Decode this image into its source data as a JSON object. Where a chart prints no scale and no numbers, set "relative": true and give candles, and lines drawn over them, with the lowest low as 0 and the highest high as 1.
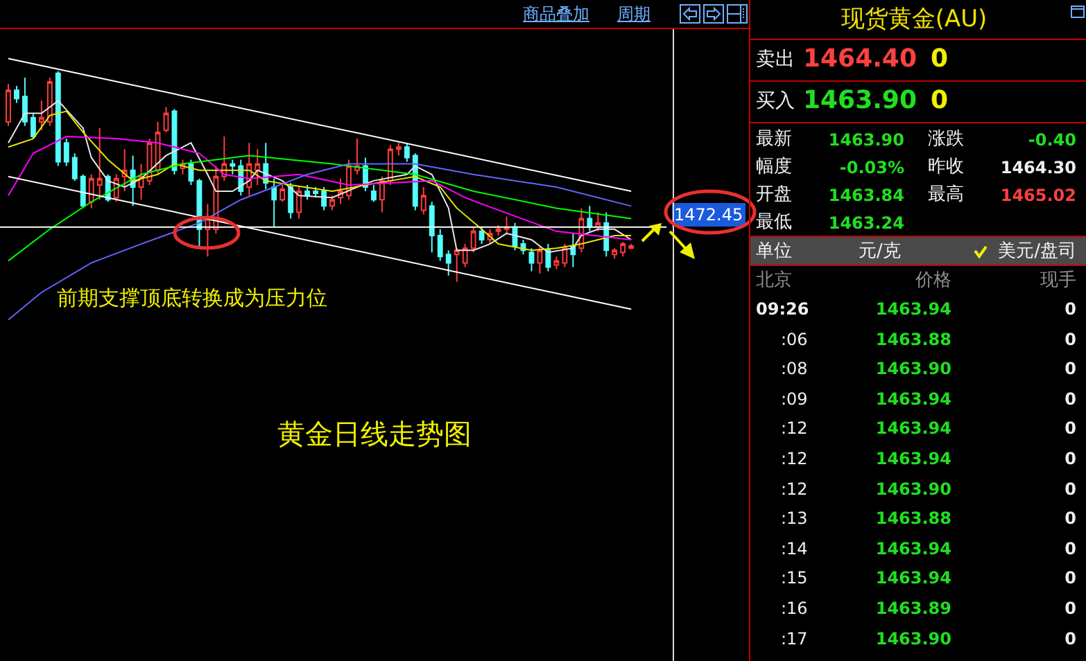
{
  "chart_data": [
    {
      "type": "candlestick",
      "title": "黄金日线走势图",
      "relative": true,
      "categories": [
        null,
        null,
        null,
        null,
        null,
        null,
        null,
        null,
        null,
        null,
        null,
        null,
        null,
        null,
        null,
        null,
        null,
        null,
        null,
        null,
        null,
        null,
        null,
        null,
        null,
        null,
        null,
        null,
        null,
        null,
        null,
        null,
        null,
        null,
        null,
        null,
        null,
        null,
        null,
        null,
        null,
        null,
        null,
        null,
        null,
        null,
        null,
        null,
        null,
        null,
        null,
        null,
        null,
        null,
        null,
        null,
        null,
        null,
        null,
        null,
        null,
        null,
        null,
        null,
        null,
        null,
        null,
        null,
        null,
        null,
        null,
        null,
        null,
        null,
        null,
        null
      ],
      "ohlc": [
        [
          0.76,
          0.94,
          0.74,
          0.91
        ],
        [
          0.91,
          0.93,
          0.85,
          0.87
        ],
        [
          0.88,
          0.97,
          0.74,
          0.76
        ],
        [
          0.78,
          0.8,
          0.68,
          0.69
        ],
        [
          0.76,
          0.86,
          0.72,
          0.78
        ],
        [
          0.76,
          0.97,
          0.74,
          0.95
        ],
        [
          0.99,
          1,
          0.55,
          0.57
        ],
        [
          0.66,
          0.68,
          0.55,
          0.57
        ],
        [
          0.59,
          0.61,
          0.48,
          0.49
        ],
        [
          0.5,
          0.51,
          0.35,
          0.36
        ],
        [
          0.38,
          0.51,
          0.35,
          0.49
        ],
        [
          0.46,
          0.73,
          0.39,
          0.49
        ],
        [
          0.5,
          0.51,
          0.38,
          0.39
        ],
        [
          0.4,
          0.51,
          0.38,
          0.49
        ],
        [
          0.5,
          0.63,
          0.43,
          0.53
        ],
        [
          0.53,
          0.6,
          0.36,
          0.45
        ],
        [
          0.45,
          0.56,
          0.39,
          0.5
        ],
        [
          0.48,
          0.68,
          0.46,
          0.66
        ],
        [
          0.53,
          0.76,
          0.51,
          0.71
        ],
        [
          0.72,
          0.83,
          0.71,
          0.8
        ],
        [
          0.81,
          0.82,
          0.51,
          0.53
        ],
        [
          0.54,
          0.58,
          0.51,
          0.56
        ],
        [
          0.56,
          0.58,
          0.46,
          0.48
        ],
        [
          0.48,
          0.49,
          0.17,
          0.25
        ],
        [
          0.25,
          0.37,
          0.12,
          0.3
        ],
        [
          0.25,
          0.55,
          0.23,
          0.5
        ],
        [
          0.5,
          0.69,
          0.48,
          0.56
        ],
        [
          0.56,
          0.58,
          0.51,
          0.55
        ],
        [
          0.55,
          0.58,
          0.41,
          0.43
        ],
        [
          0.45,
          0.66,
          0.41,
          0.56
        ],
        [
          0.53,
          0.63,
          0.46,
          0.56
        ],
        [
          0.56,
          0.66,
          0.44,
          0.47
        ],
        [
          0.45,
          0.49,
          0.26,
          0.39
        ],
        [
          0.39,
          0.46,
          0.38,
          0.44
        ],
        [
          0.45,
          0.47,
          0.3,
          0.33
        ],
        [
          0.33,
          0.45,
          0.3,
          0.43
        ],
        [
          0.43,
          0.46,
          0.39,
          0.41
        ],
        [
          0.43,
          0.45,
          0.4,
          0.42
        ],
        [
          0.43,
          0.45,
          0.34,
          0.36
        ],
        [
          0.36,
          0.41,
          0.34,
          0.39
        ],
        [
          0.4,
          0.49,
          0.37,
          0.43
        ],
        [
          0.41,
          0.58,
          0.39,
          0.55
        ],
        [
          0.53,
          0.68,
          0.51,
          0.55
        ],
        [
          0.55,
          0.59,
          0.43,
          0.45
        ],
        [
          0.43,
          0.46,
          0.38,
          0.39
        ],
        [
          0.39,
          0.5,
          0.33,
          0.48
        ],
        [
          0.48,
          0.65,
          0.46,
          0.63
        ],
        [
          0.63,
          0.66,
          0.6,
          0.64
        ],
        [
          0.64,
          0.66,
          0.57,
          0.59
        ],
        [
          0.6,
          0.61,
          0.34,
          0.36
        ],
        [
          0.34,
          0.45,
          0.32,
          0.41
        ],
        [
          0.36,
          0.38,
          0.14,
          0.22
        ],
        [
          0.22,
          0.25,
          0.1,
          0.12
        ],
        [
          0.13,
          0.15,
          0.03,
          0.09
        ],
        [
          0.13,
          0.16,
          0,
          0.15
        ],
        [
          0.09,
          0.18,
          0.07,
          0.16
        ],
        [
          0.16,
          0.26,
          0.14,
          0.24
        ],
        [
          0.24,
          0.26,
          0.18,
          0.2
        ],
        [
          0.2,
          0.25,
          0.18,
          0.23
        ],
        [
          0.24,
          0.27,
          0.22,
          0.25
        ],
        [
          0.25,
          0.31,
          0.23,
          0.26
        ],
        [
          0.26,
          0.28,
          0.15,
          0.17
        ],
        [
          0.18,
          0.2,
          0.13,
          0.15
        ],
        [
          0.14,
          0.16,
          0.05,
          0.09
        ],
        [
          0.09,
          0.17,
          0.04,
          0.15
        ],
        [
          0.15,
          0.18,
          0.05,
          0.07
        ],
        [
          0.08,
          0.12,
          0.06,
          0.1
        ],
        [
          0.09,
          0.18,
          0.07,
          0.16
        ],
        [
          0.17,
          0.23,
          0.07,
          0.13
        ],
        [
          0.16,
          0.35,
          0.14,
          0.3
        ],
        [
          0.3,
          0.36,
          0.24,
          0.26
        ],
        [
          0.26,
          0.33,
          0.24,
          0.28
        ],
        [
          0.28,
          0.33,
          0.12,
          0.15
        ],
        [
          0.13,
          0.16,
          0.11,
          0.15
        ],
        [
          0.14,
          0.19,
          0.12,
          0.18
        ],
        [
          0.16,
          0.18,
          0.16,
          0.17
        ]
      ],
      "series": [
        {
          "type": "line",
          "color": "#e6e6e6",
          "values": [
            0.66,
            null,
            0.8,
            null,
            0.8,
            null,
            0.86,
            null,
            null,
            0.73,
            0.59,
            null,
            0.48,
            null,
            0.45,
            null,
            0.49,
            null,
            null,
            0.6,
            null,
            null,
            0.66,
            null,
            0.51,
            0.43,
            null,
            0.43,
            null,
            0.48,
            0.53,
            null,
            null,
            0.48,
            null,
            0.41,
            null,
            null,
            null,
            0.4,
            null,
            null,
            0.45,
            null,
            0.48,
            null,
            null,
            null,
            0.51,
            0.55,
            null,
            0.51,
            null,
            0.35,
            0.15,
            null,
            0.15,
            null,
            0.18,
            null,
            0.23,
            null,
            null,
            0.2,
            null,
            0.14,
            null,
            null,
            0.16,
            0.22,
            null,
            0.25,
            null,
            0.25,
            null,
            0.2
          ]
        },
        {
          "type": "line",
          "color": "#e6e600",
          "values": [
            0.64,
            null,
            null,
            0.68,
            null,
            0.79,
            null,
            0.81,
            null,
            0.71,
            null,
            null,
            0.58,
            null,
            null,
            0.48,
            null,
            null,
            0.51,
            null,
            0.56,
            null,
            null,
            0.53,
            null,
            null,
            0.53,
            null,
            null,
            0.53,
            null,
            0.48,
            null,
            null,
            0.46,
            null,
            null,
            null,
            null,
            0.43,
            null,
            null,
            null,
            0.46,
            null,
            null,
            0.48,
            null,
            null,
            0.5,
            null,
            null,
            0.45,
            null,
            0.35,
            null,
            null,
            0.25,
            null,
            0.18,
            null,
            null,
            null,
            0.15,
            null,
            null,
            0.16,
            null,
            null,
            0.18,
            null,
            null,
            null,
            0.22,
            null,
            0.22
          ]
        },
        {
          "type": "line",
          "color": "#ff00ff",
          "values": [
            0.41,
            null,
            null,
            0.61,
            null,
            null,
            null,
            0.69,
            null,
            null,
            null,
            null,
            null,
            0.68,
            null,
            null,
            null,
            null,
            0.66,
            null,
            null,
            null,
            null,
            0.61,
            null,
            null,
            0.51,
            null,
            null,
            0.49,
            null,
            null,
            null,
            null,
            null,
            0.51,
            null,
            null,
            null,
            null,
            null,
            0.46,
            null,
            null,
            null,
            null,
            0.47,
            null,
            null,
            null,
            null,
            0.48,
            null,
            null,
            null,
            0.4,
            null,
            0.37,
            null,
            null,
            null,
            null,
            null,
            null,
            null,
            null,
            0.24,
            null,
            null,
            null,
            null,
            null,
            null,
            null,
            null,
            0.2
          ]
        },
        {
          "type": "line",
          "color": "#00ff00",
          "values": [
            0.1,
            null,
            null,
            null,
            null,
            0.25,
            null,
            null,
            null,
            null,
            0.38,
            null,
            null,
            null,
            null,
            null,
            0.51,
            null,
            null,
            null,
            null,
            0.56,
            null,
            null,
            null,
            null,
            null,
            null,
            null,
            0.6,
            null,
            null,
            null,
            null,
            null,
            null,
            null,
            null,
            null,
            0.56,
            null,
            null,
            null,
            null,
            null,
            null,
            null,
            null,
            null,
            0.51,
            null,
            null,
            null,
            null,
            null,
            null,
            0.43,
            null,
            null,
            null,
            null,
            null,
            null,
            null,
            null,
            null,
            0.35,
            null,
            null,
            null,
            null,
            null,
            null,
            null,
            null,
            0.3
          ]
        },
        {
          "type": "line",
          "color": "#6464ff",
          "values": [
            -0.18,
            null,
            null,
            null,
            -0.05,
            null,
            null,
            null,
            null,
            null,
            0.09,
            null,
            null,
            null,
            null,
            null,
            0.18,
            null,
            null,
            null,
            null,
            null,
            null,
            0.28,
            null,
            null,
            null,
            null,
            0.39,
            null,
            null,
            null,
            null,
            null,
            null,
            null,
            0.51,
            null,
            null,
            null,
            null,
            0.56,
            null,
            null,
            null,
            null,
            null,
            null,
            null,
            0.56,
            null,
            null,
            null,
            null,
            null,
            null,
            0.51,
            null,
            null,
            null,
            null,
            null,
            null,
            null,
            null,
            null,
            0.45,
            null,
            null,
            null,
            null,
            null,
            null,
            null,
            null,
            0.36
          ]
        },
        {
          "type": "line",
          "color": "#ffffff",
          "values": [
            1.06,
            null,
            null,
            null,
            null,
            null,
            null,
            null,
            null,
            null,
            null,
            null,
            null,
            null,
            null,
            null,
            null,
            null,
            null,
            null,
            null,
            null,
            null,
            null,
            null,
            null,
            null,
            null,
            null,
            null,
            null,
            null,
            null,
            null,
            null,
            null,
            null,
            null,
            null,
            null,
            null,
            null,
            null,
            null,
            null,
            null,
            null,
            null,
            null,
            null,
            null,
            null,
            null,
            null,
            null,
            null,
            null,
            null,
            null,
            null,
            null,
            null,
            null,
            null,
            null,
            null,
            null,
            null,
            null,
            null,
            null,
            null,
            null,
            null,
            null,
            0.43
          ]
        },
        {
          "type": "line",
          "color": "#ffffff",
          "values": [
            0.5,
            null,
            null,
            null,
            null,
            null,
            null,
            null,
            null,
            null,
            null,
            null,
            null,
            null,
            null,
            null,
            null,
            null,
            null,
            null,
            null,
            null,
            null,
            null,
            null,
            null,
            null,
            null,
            null,
            null,
            null,
            null,
            null,
            null,
            null,
            null,
            null,
            null,
            null,
            null,
            null,
            null,
            null,
            null,
            null,
            null,
            null,
            null,
            null,
            null,
            null,
            null,
            null,
            null,
            null,
            null,
            null,
            null,
            null,
            null,
            null,
            null,
            null,
            null,
            null,
            null,
            null,
            null,
            null,
            null,
            null,
            null,
            null,
            null,
            null,
            -0.13
          ]
        }
      ],
      "ref_lines": [
        {
          "axis": "y",
          "value": 0.26,
          "color": "#ffffff"
        }
      ],
      "annotations": [
        "前期支撑顶底转换成为压力位",
        "商品叠加",
        "周期",
        "1472.45"
      ]
    },
    {
      "type": "other",
      "title": "现货黄金(AU)",
      "annotations": [
        "卖出",
        "1464.40",
        "0",
        "买入",
        "1463.90",
        "0",
        "最新",
        "1463.90",
        "涨跌",
        "-0.40",
        "幅度",
        "-0.03%",
        "昨收",
        "1464.30",
        "开盘",
        "1463.84",
        "最高",
        "1465.02",
        "最低",
        "1463.24",
        "单位",
        "元/克",
        "美元/盘司",
        "北京",
        "价格",
        "现手",
        "09:26",
        "1463.94",
        "0",
        ":06",
        "1463.88",
        "0",
        ":08",
        "1463.90",
        "0",
        ":09",
        "1463.94",
        "0",
        ":12",
        "1463.94",
        "0",
        ":12",
        "1463.94",
        "0",
        ":12",
        "1463.90",
        "0",
        ":13",
        "1463.88",
        "0",
        ":14",
        "1463.94",
        "0",
        ":15",
        "1463.94",
        "0",
        ":16",
        "1463.89",
        "0",
        ":17",
        "1463.90",
        "0"
      ]
    }
  ]
}
